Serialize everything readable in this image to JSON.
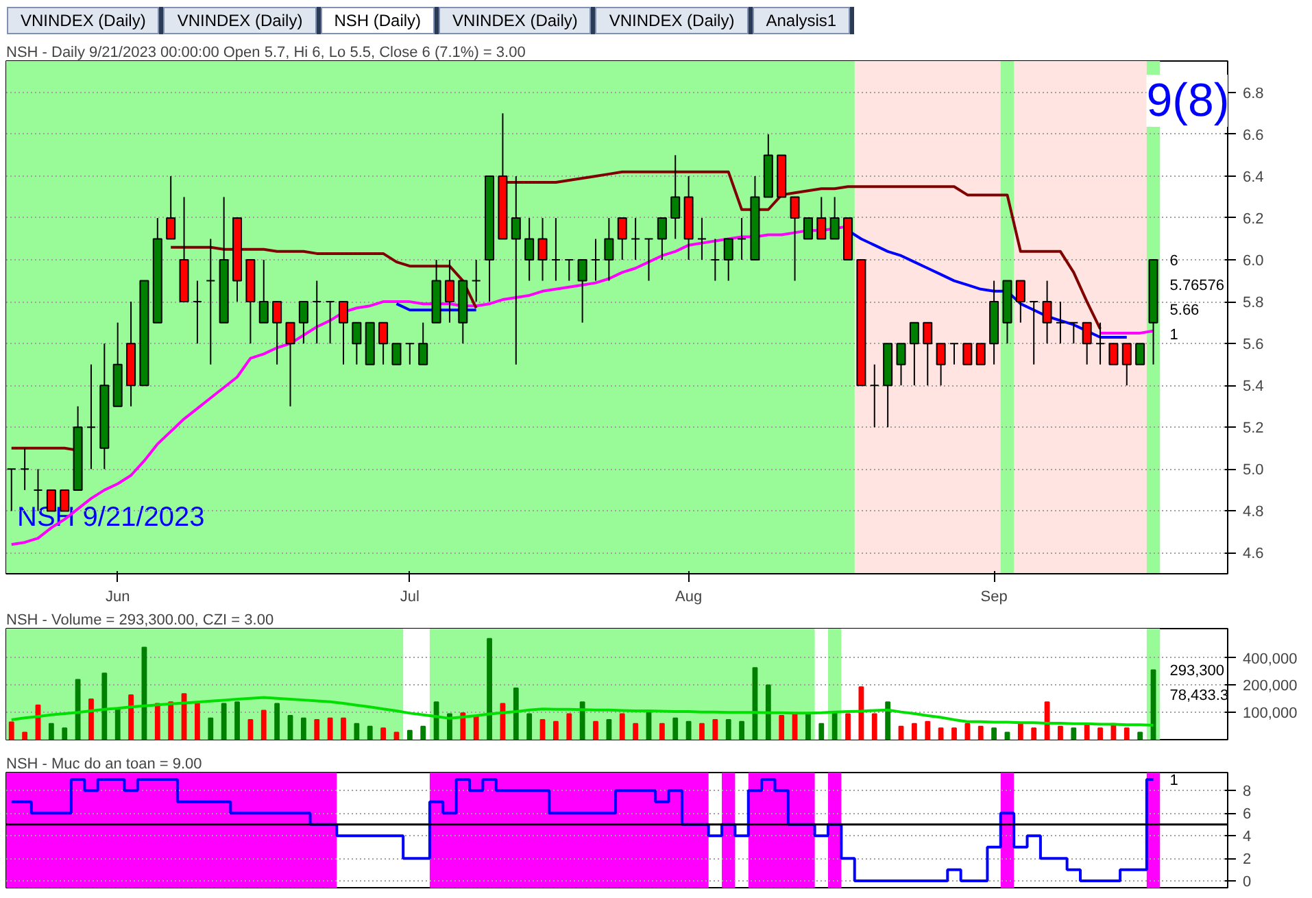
{
  "chart_data": [
    {
      "type": "other",
      "annotations": [
        "VNINDEX (Daily)",
        "VNINDEX (Daily)",
        "NSH (Daily)",
        "VNINDEX (Daily)",
        "VNINDEX (Daily)",
        "Analysis1"
      ]
    },
    {
      "type": "candlestick",
      "title": "NSH - Daily 9/21/2023 00:00:00 Open 5.7, Hi 6, Lo 5.5, Close 6 (7.1%)  = 3.00",
      "subtitle": "NSH 9/21/2023",
      "categories": [
        null,
        null,
        null,
        null,
        null,
        null,
        null,
        null,
        "Jun",
        null,
        null,
        null,
        null,
        null,
        null,
        null,
        null,
        null,
        null,
        null,
        null,
        null,
        null,
        null,
        null,
        null,
        null,
        null,
        null,
        null,
        "Jul",
        null,
        null,
        null,
        null,
        null,
        null,
        null,
        null,
        null,
        null,
        null,
        null,
        null,
        null,
        null,
        null,
        null,
        null,
        null,
        null,
        "Aug",
        null,
        null,
        null,
        null,
        null,
        null,
        null,
        null,
        null,
        null,
        null,
        null,
        null,
        null,
        null,
        null,
        null,
        null,
        null,
        null,
        null,
        null,
        "Sep",
        null,
        null,
        null,
        null,
        null,
        null,
        null,
        null,
        null,
        null,
        null,
        null
      ],
      "ohlc": [
        [
          5.0,
          5.0,
          4.8,
          5.0
        ],
        [
          5.0,
          5.1,
          4.9,
          5.0
        ],
        [
          4.9,
          5.0,
          4.8,
          4.9
        ],
        [
          4.9,
          4.9,
          4.8,
          4.8
        ],
        [
          4.9,
          4.9,
          4.8,
          4.8
        ],
        [
          4.9,
          5.3,
          4.9,
          5.2
        ],
        [
          5.2,
          5.5,
          5.0,
          5.2
        ],
        [
          5.1,
          5.6,
          5.0,
          5.4
        ],
        [
          5.3,
          5.7,
          5.3,
          5.5
        ],
        [
          5.6,
          5.8,
          5.3,
          5.4
        ],
        [
          5.4,
          5.9,
          5.4,
          5.9
        ],
        [
          5.7,
          6.2,
          5.7,
          6.1
        ],
        [
          6.2,
          6.4,
          6.1,
          6.1
        ],
        [
          6.0,
          6.3,
          5.8,
          5.8
        ],
        [
          5.8,
          5.9,
          5.6,
          5.8
        ],
        [
          5.9,
          6.1,
          5.5,
          5.9
        ],
        [
          5.7,
          6.3,
          5.7,
          6.0
        ],
        [
          6.2,
          6.2,
          5.8,
          5.9
        ],
        [
          6.0,
          6.0,
          5.6,
          5.8
        ],
        [
          5.7,
          6.0,
          5.7,
          5.8
        ],
        [
          5.8,
          5.8,
          5.5,
          5.7
        ],
        [
          5.7,
          5.7,
          5.3,
          5.6
        ],
        [
          5.7,
          5.8,
          5.6,
          5.8
        ],
        [
          5.8,
          5.9,
          5.6,
          5.8
        ],
        [
          5.8,
          5.8,
          5.6,
          5.8
        ],
        [
          5.8,
          5.8,
          5.5,
          5.7
        ],
        [
          5.6,
          5.7,
          5.5,
          5.7
        ],
        [
          5.5,
          5.7,
          5.5,
          5.7
        ],
        [
          5.7,
          5.7,
          5.5,
          5.6
        ],
        [
          5.5,
          5.6,
          5.5,
          5.6
        ],
        [
          5.6,
          5.6,
          5.5,
          5.6
        ],
        [
          5.5,
          5.7,
          5.5,
          5.6
        ],
        [
          5.7,
          6.0,
          5.7,
          5.9
        ],
        [
          5.9,
          6.0,
          5.7,
          5.8
        ],
        [
          5.7,
          5.9,
          5.6,
          5.9
        ],
        [
          5.9,
          6.0,
          5.8,
          5.9
        ],
        [
          6.0,
          6.4,
          5.8,
          6.4
        ],
        [
          6.4,
          6.7,
          6.1,
          6.1
        ],
        [
          6.1,
          6.4,
          5.5,
          6.2
        ],
        [
          6.0,
          6.2,
          5.9,
          6.1
        ],
        [
          6.1,
          6.2,
          5.9,
          6.0
        ],
        [
          6.0,
          6.2,
          5.9,
          6.0
        ],
        [
          6.0,
          6.0,
          5.9,
          6.0
        ],
        [
          5.9,
          6.0,
          5.7,
          6.0
        ],
        [
          6.0,
          6.1,
          5.9,
          6.0
        ],
        [
          6.0,
          6.2,
          5.9,
          6.1
        ],
        [
          6.2,
          6.2,
          6.0,
          6.1
        ],
        [
          6.1,
          6.2,
          6.0,
          6.1
        ],
        [
          6.1,
          6.1,
          5.9,
          6.1
        ],
        [
          6.1,
          6.2,
          6.0,
          6.2
        ],
        [
          6.2,
          6.5,
          6.1,
          6.3
        ],
        [
          6.3,
          6.4,
          6.0,
          6.1
        ],
        [
          6.1,
          6.2,
          6.0,
          6.1
        ],
        [
          6.0,
          6.1,
          5.9,
          6.0
        ],
        [
          6.0,
          6.1,
          5.9,
          6.1
        ],
        [
          6.1,
          6.2,
          6.0,
          6.1
        ],
        [
          6.0,
          6.4,
          6.0,
          6.3
        ],
        [
          6.3,
          6.6,
          6.3,
          6.5
        ],
        [
          6.5,
          6.5,
          6.3,
          6.3
        ],
        [
          6.3,
          6.3,
          5.9,
          6.2
        ],
        [
          6.1,
          6.2,
          6.1,
          6.2
        ],
        [
          6.2,
          6.3,
          6.1,
          6.1
        ],
        [
          6.1,
          6.3,
          6.1,
          6.2
        ],
        [
          6.2,
          6.2,
          6.0,
          6.0
        ],
        [
          6.0,
          6.0,
          5.4,
          5.4
        ],
        [
          5.4,
          5.5,
          5.2,
          5.4
        ],
        [
          5.4,
          5.6,
          5.2,
          5.6
        ],
        [
          5.5,
          5.6,
          5.4,
          5.6
        ],
        [
          5.6,
          5.7,
          5.4,
          5.7
        ],
        [
          5.7,
          5.7,
          5.4,
          5.6
        ],
        [
          5.6,
          5.6,
          5.4,
          5.5
        ],
        [
          5.6,
          5.6,
          5.5,
          5.6
        ],
        [
          5.6,
          5.6,
          5.5,
          5.5
        ],
        [
          5.6,
          5.6,
          5.5,
          5.5
        ],
        [
          5.6,
          5.9,
          5.5,
          5.8
        ],
        [
          5.7,
          5.9,
          5.6,
          5.9
        ],
        [
          5.9,
          5.9,
          5.7,
          5.8
        ],
        [
          5.8,
          5.8,
          5.5,
          5.8
        ],
        [
          5.8,
          5.9,
          5.6,
          5.7
        ],
        [
          5.7,
          5.8,
          5.6,
          5.7
        ],
        [
          5.7,
          5.7,
          5.6,
          5.7
        ],
        [
          5.7,
          5.7,
          5.5,
          5.6
        ],
        [
          5.6,
          5.7,
          5.5,
          5.6
        ],
        [
          5.6,
          5.6,
          5.5,
          5.5
        ],
        [
          5.6,
          5.6,
          5.4,
          5.5
        ],
        [
          5.5,
          5.6,
          5.5,
          5.6
        ],
        [
          5.7,
          6.0,
          5.5,
          6.0
        ]
      ],
      "series": [
        {
          "type": "line",
          "color": "#ff00ff",
          "values": [
            4.64,
            4.65,
            4.67,
            4.72,
            4.76,
            4.81,
            4.86,
            4.9,
            4.93,
            4.97,
            5.04,
            5.12,
            5.18,
            5.24,
            5.29,
            5.34,
            5.39,
            5.44,
            5.53,
            5.55,
            5.58,
            5.6,
            5.64,
            5.68,
            5.71,
            5.75,
            5.77,
            5.78,
            5.8,
            5.8,
            5.8,
            5.79,
            5.79,
            5.79,
            5.78,
            5.78,
            5.79,
            5.81,
            5.82,
            5.83,
            5.85,
            5.86,
            5.87,
            5.88,
            5.89,
            5.91,
            5.94,
            5.96,
            5.99,
            6.02,
            6.04,
            6.07,
            6.08,
            6.09,
            6.1,
            6.11,
            6.11,
            6.12,
            6.12,
            6.13,
            6.14,
            6.14,
            6.15,
            6.16,
            null,
            null,
            null,
            null,
            null,
            null,
            null,
            null,
            null,
            null,
            null,
            null,
            null,
            null,
            null,
            null,
            null,
            null,
            5.65,
            5.65,
            5.65,
            5.65,
            5.66
          ]
        },
        {
          "type": "line",
          "color": "#800000",
          "values": [
            5.1,
            5.1,
            5.1,
            5.1,
            5.1,
            5.09,
            null,
            null,
            null,
            null,
            null,
            null,
            6.06,
            6.06,
            6.06,
            6.06,
            6.05,
            6.05,
            6.05,
            6.05,
            6.04,
            6.04,
            6.04,
            6.03,
            6.03,
            6.03,
            6.03,
            6.03,
            6.03,
            5.99,
            5.97,
            5.97,
            5.97,
            5.97,
            5.9,
            5.77,
            null,
            6.37,
            6.37,
            6.37,
            6.37,
            6.37,
            6.38,
            6.39,
            6.4,
            6.41,
            6.42,
            6.42,
            6.42,
            6.42,
            6.42,
            6.42,
            6.42,
            6.42,
            6.42,
            6.24,
            6.24,
            6.24,
            6.31,
            6.32,
            6.33,
            6.34,
            6.34,
            6.35,
            6.35,
            6.35,
            6.35,
            6.35,
            6.35,
            6.35,
            6.35,
            6.35,
            6.31,
            6.31,
            6.31,
            6.31,
            6.04,
            6.04,
            6.04,
            6.04,
            5.94,
            5.8,
            5.67,
            null,
            null,
            null,
            null
          ]
        },
        {
          "type": "line",
          "color": "#0000ff",
          "values": [
            null,
            null,
            null,
            null,
            null,
            null,
            null,
            null,
            null,
            null,
            null,
            null,
            null,
            null,
            null,
            null,
            null,
            null,
            null,
            null,
            null,
            null,
            null,
            null,
            null,
            null,
            null,
            null,
            null,
            5.79,
            5.76,
            5.76,
            5.76,
            5.76,
            5.76,
            5.76,
            null,
            null,
            null,
            null,
            null,
            null,
            null,
            null,
            null,
            null,
            null,
            null,
            null,
            null,
            null,
            null,
            null,
            null,
            null,
            null,
            null,
            null,
            null,
            null,
            null,
            null,
            null,
            6.14,
            6.1,
            6.07,
            6.04,
            6.02,
            5.99,
            5.96,
            5.93,
            5.9,
            5.88,
            5.86,
            5.85,
            5.85,
            5.79,
            5.76,
            5.73,
            5.71,
            5.69,
            5.66,
            5.63,
            5.63,
            5.63,
            null,
            null
          ]
        }
      ],
      "ylim": [
        4.5,
        6.95
      ],
      "yticks": [
        4.6,
        4.8,
        {
          "value": 5,
          "label": "5.0"
        },
        5.2,
        5.4,
        5.6,
        5.8,
        {
          "value": 6,
          "label": "6.0"
        },
        6.2,
        6.4,
        6.6,
        6.8
      ],
      "grid": "y",
      "annotations": [
        "9(8)",
        "6",
        "5.76576",
        "5.66",
        "1"
      ]
    },
    {
      "type": "bar",
      "title": "NSH - Volume = 293,300.00, CZI = 3.00",
      "categories": [
        null,
        null,
        null,
        null,
        null,
        null,
        null,
        null,
        null,
        null,
        null,
        null,
        null,
        null,
        null,
        null,
        null,
        null,
        null,
        null,
        null,
        null,
        null,
        null,
        null,
        null,
        null,
        null,
        null,
        null,
        null,
        null,
        null,
        null,
        null,
        null,
        null,
        null,
        null,
        null,
        null,
        null,
        null,
        null,
        null,
        null,
        null,
        null,
        null,
        null,
        null,
        null,
        null,
        null,
        null,
        null,
        null,
        null,
        null,
        null,
        null,
        null,
        null,
        null,
        null,
        null,
        null,
        null,
        null,
        null,
        null,
        null,
        null,
        null,
        null,
        null,
        null,
        null,
        null,
        null,
        null,
        null,
        null,
        null,
        null,
        null,
        null
      ],
      "values": [
        78000,
        60000,
        120000,
        75000,
        67000,
        230000,
        140000,
        270000,
        110000,
        155000,
        520000,
        125000,
        130000,
        160000,
        125000,
        86000,
        125000,
        130000,
        83000,
        105000,
        125000,
        92000,
        86000,
        83000,
        86000,
        86000,
        75000,
        70000,
        67000,
        60000,
        63000,
        70000,
        130000,
        96000,
        98000,
        92000,
        650000,
        125000,
        185000,
        96000,
        83000,
        79000,
        96000,
        130000,
        79000,
        83000,
        96000,
        75000,
        105000,
        75000,
        86000,
        79000,
        75000,
        83000,
        83000,
        79000,
        310000,
        200000,
        92000,
        96000,
        98000,
        75000,
        98000,
        96000,
        190000,
        96000,
        130000,
        70000,
        75000,
        79000,
        67000,
        67000,
        75000,
        70000,
        67000,
        60000,
        75000,
        67000,
        130000,
        70000,
        67000,
        75000,
        67000,
        75000,
        67000,
        60000,
        293300
      ],
      "colors": [
        "#ff0000",
        "#ff0000",
        "#ff0000",
        "#008000",
        "#008000",
        "#008000",
        "#ff0000",
        "#008000",
        "#008000",
        "#ff0000",
        "#008000",
        "#ff0000",
        "#ff0000",
        "#ff0000",
        "#ff0000",
        "#008000",
        "#008000",
        "#008000",
        "#ff0000",
        "#ff0000",
        "#008000",
        "#008000",
        "#008000",
        "#ff0000",
        "#ff0000",
        "#ff0000",
        "#008000",
        "#008000",
        "#ff0000",
        "#ff0000",
        "#008000",
        "#008000",
        "#008000",
        "#008000",
        "#ff0000",
        "#ff0000",
        "#008000",
        "#ff0000",
        "#008000",
        "#008000",
        "#ff0000",
        "#ff0000",
        "#ff0000",
        "#008000",
        "#ff0000",
        "#008000",
        "#ff0000",
        "#ff0000",
        "#008000",
        "#ff0000",
        "#008000",
        "#008000",
        "#ff0000",
        "#ff0000",
        "#008000",
        "#008000",
        "#008000",
        "#008000",
        "#ff0000",
        "#ff0000",
        "#008000",
        "#008000",
        "#008000",
        "#ff0000",
        "#ff0000",
        "#ff0000",
        "#008000",
        "#ff0000",
        "#ff0000",
        "#ff0000",
        "#ff0000",
        "#ff0000",
        "#ff0000",
        "#ff0000",
        "#008000",
        "#008000",
        "#ff0000",
        "#ff0000",
        "#ff0000",
        "#ff0000",
        "#008000",
        "#ff0000",
        "#ff0000",
        "#ff0000",
        "#ff0000",
        "#008000",
        "#008000"
      ],
      "series": [
        {
          "type": "line",
          "color": "#00e000",
          "values": [
            83000,
            87000,
            90000,
            94000,
            97000,
            100000,
            104000,
            108000,
            111000,
            115000,
            118000,
            121000,
            124000,
            127000,
            130000,
            133000,
            136000,
            140000,
            143000,
            146000,
            143000,
            140000,
            137000,
            134000,
            131000,
            126000,
            120000,
            115000,
            109000,
            104000,
            98000,
            94000,
            90000,
            86000,
            89000,
            92000,
            96000,
            99000,
            102000,
            106000,
            109000,
            108000,
            108000,
            107000,
            106000,
            106000,
            105000,
            104000,
            104000,
            103000,
            102000,
            102000,
            101000,
            101000,
            100000,
            100000,
            100000,
            99000,
            99000,
            98000,
            98000,
            99000,
            101000,
            102000,
            103000,
            105000,
            106000,
            101000,
            97000,
            92000,
            88000,
            83000,
            79000,
            79000,
            78000,
            78000,
            77000,
            77000,
            76000,
            76000,
            75000,
            75000,
            74000,
            74000,
            73000,
            73000,
            72000
          ]
        }
      ],
      "log": "y",
      "ylim": [
        50000,
        840000
      ],
      "yticks": [
        {
          "value": 100000,
          "label": "100,000"
        },
        {
          "value": 200000,
          "label": "200,000"
        },
        {
          "value": 400000,
          "label": "400,000"
        }
      ],
      "grid": "y",
      "tick_labels": "y",
      "annotations": [
        "293,300",
        "78,433.3"
      ]
    },
    {
      "type": "step",
      "title": "NSH - Muc do an toan = 9.00",
      "categories": [
        null,
        null,
        null,
        null,
        null,
        null,
        null,
        null,
        null,
        null,
        null,
        null,
        null,
        null,
        null,
        null,
        null,
        null,
        null,
        null,
        null,
        null,
        null,
        null,
        null,
        null,
        null,
        null,
        null,
        null,
        null,
        null,
        null,
        null,
        null,
        null,
        null,
        null,
        null,
        null,
        null,
        null,
        null,
        null,
        null,
        null,
        null,
        null,
        null,
        null,
        null,
        null,
        null,
        null,
        null,
        null,
        null,
        null,
        null,
        null,
        null,
        null,
        null,
        null,
        null,
        null,
        null,
        null,
        null,
        null,
        null,
        null,
        null,
        null,
        null,
        null,
        null,
        null,
        null,
        null,
        null,
        null,
        null,
        null,
        null,
        null,
        null
      ],
      "series": [
        {
          "color": "#0000ff",
          "values": [
            7,
            7,
            6,
            6,
            6,
            9,
            8,
            9,
            9,
            8,
            9,
            9,
            9,
            7,
            7,
            7,
            7,
            6,
            6,
            6,
            6,
            6,
            6,
            5,
            5,
            4,
            4,
            4,
            4,
            4,
            2,
            2,
            7,
            6,
            9,
            8,
            9,
            8,
            8,
            8,
            8,
            6,
            6,
            6,
            6,
            6,
            8,
            8,
            8,
            7,
            8,
            5,
            5,
            4,
            5,
            4,
            8,
            9,
            8,
            5,
            5,
            4,
            5,
            2,
            0,
            0,
            0,
            0,
            0,
            0,
            0,
            1,
            0,
            0,
            3,
            6,
            3,
            4,
            2,
            2,
            1,
            0,
            0,
            0,
            1,
            1,
            9
          ]
        }
      ],
      "ylim": [
        -0.6,
        9.6
      ],
      "yticks": [
        0,
        2,
        4,
        6,
        8
      ],
      "grid": "y",
      "tick_labels": "y",
      "ref_lines": [
        {
          "axis": "y",
          "value": 5,
          "color": "#000000"
        }
      ],
      "annotations": [
        "1"
      ]
    }
  ]
}
